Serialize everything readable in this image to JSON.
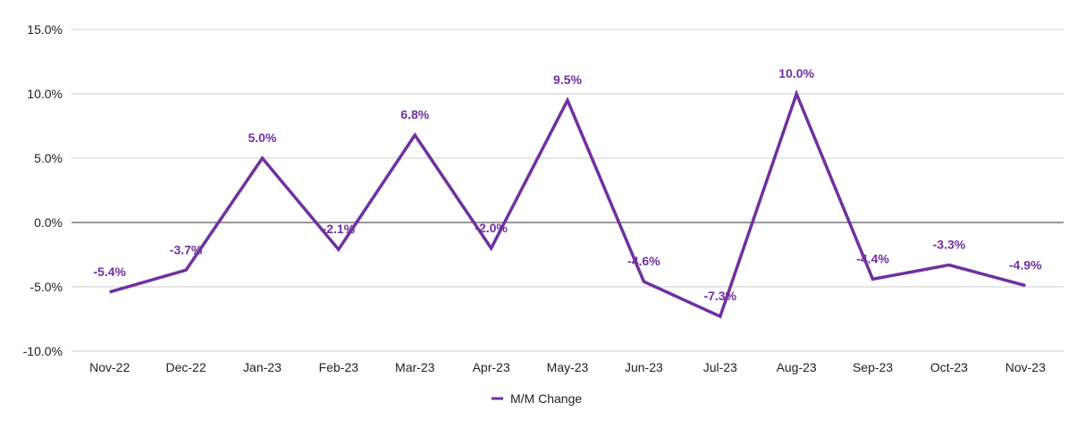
{
  "chart_data": {
    "type": "line",
    "title": "",
    "xlabel": "",
    "ylabel": "",
    "categories": [
      "Nov-22",
      "Dec-22",
      "Jan-23",
      "Feb-23",
      "Mar-23",
      "Apr-23",
      "May-23",
      "Jun-23",
      "Jul-23",
      "Aug-23",
      "Sep-23",
      "Oct-23",
      "Nov-23"
    ],
    "series": [
      {
        "name": "M/M Change",
        "values": [
          -5.4,
          -3.7,
          5.0,
          -2.1,
          6.8,
          -2.0,
          9.5,
          -4.6,
          -7.3,
          10.0,
          -4.4,
          -3.3,
          -4.9
        ],
        "labels": [
          "-5.4%",
          "-3.7%",
          "5.0%",
          "-2.1%",
          "6.8%",
          "-2.0%",
          "9.5%",
          "-4.6%",
          "-7.3%",
          "10.0%",
          "-4.4%",
          "-3.3%",
          "-4.9%"
        ],
        "color": "#7030a0"
      }
    ],
    "ylim": [
      -10,
      15
    ],
    "yticks": [
      -10,
      -5,
      0,
      5,
      10,
      15
    ],
    "ytick_labels": [
      "-10.0%",
      "-5.0%",
      "0.0%",
      "5.0%",
      "10.0%",
      "15.0%"
    ],
    "grid": true,
    "legend": "bottom-center"
  },
  "colors": {
    "series": "#7030a0",
    "grid": "#cccccc",
    "zero_line": "#333333"
  }
}
